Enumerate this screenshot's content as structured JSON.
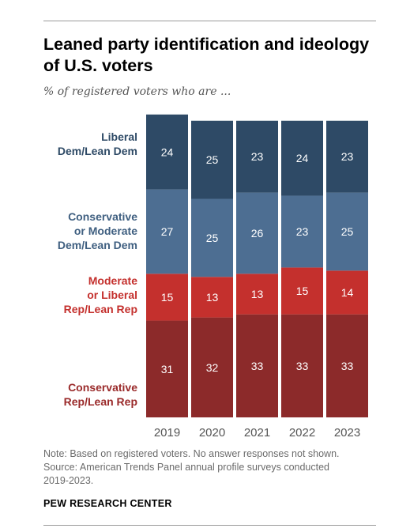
{
  "header": {
    "title_line1": "Leaned party identification and ideology",
    "title_line2": "of U.S. voters",
    "subtitle": "% of registered voters who are ..."
  },
  "segment_labels": [
    [
      "Liberal",
      "Dem/Lean Dem"
    ],
    [
      "Conservative",
      "or Moderate",
      "Dem/Lean Dem"
    ],
    [
      "Moderate",
      "or Liberal",
      "Rep/Lean Rep"
    ],
    [
      "Conservative",
      "Rep/Lean Rep"
    ]
  ],
  "chart_data": {
    "type": "bar",
    "stacked": true,
    "categories": [
      "2019",
      "2020",
      "2021",
      "2022",
      "2023"
    ],
    "series": [
      {
        "name": "Liberal Dem/Lean Dem",
        "values": [
          24,
          25,
          23,
          24,
          23
        ],
        "color": "#2e4a66"
      },
      {
        "name": "Conservative or Moderate Dem/Lean Dem",
        "values": [
          27,
          25,
          26,
          23,
          25
        ],
        "color": "#4d6e92"
      },
      {
        "name": "Moderate or Liberal Rep/Lean Rep",
        "values": [
          15,
          13,
          13,
          15,
          14
        ],
        "color": "#c4302d"
      },
      {
        "name": "Conservative Rep/Lean Rep",
        "values": [
          31,
          32,
          33,
          33,
          33
        ],
        "color": "#8c2a2a"
      }
    ],
    "label_colors": [
      "#2e4a66",
      "#3f5f80",
      "#c4302d",
      "#9a2a2a"
    ],
    "value_label_color": "#ffffff",
    "axis_label_color": "#555555"
  },
  "footer": {
    "note_line1": "Note: Based on registered voters. No answer responses not shown.",
    "note_line2": "Source: American Trends Panel annual profile surveys conducted",
    "note_line3": "2019-2023.",
    "org": "PEW RESEARCH CENTER"
  }
}
